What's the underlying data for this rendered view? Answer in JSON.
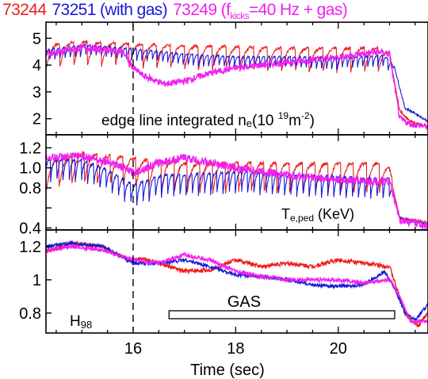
{
  "legend": {
    "shot1": "73244",
    "shot2": "73251 (with gas)",
    "shot3_pre": "73249 (f",
    "shot3_sub": "kicks",
    "shot3_post": "=40 Hz + gas)"
  },
  "colors": {
    "shot1": "#ee1c1c",
    "shot2": "#1a1ad6",
    "shot3": "#f020f0",
    "axis": "#000000"
  },
  "panels": {
    "p1": {
      "label_main": "edge line integrated n",
      "label_sub": "e",
      "label_unit": "(10 ",
      "label_exp1": "19",
      "label_m": "m",
      "label_exp2": "-2",
      "label_close": ")"
    },
    "p2": {
      "label_main": "T",
      "label_sub": "e,ped",
      "label_unit": " (KeV)"
    },
    "p3": {
      "label_main": "H",
      "label_sub": "98",
      "gas_label": "GAS"
    }
  },
  "xlabel": "Time (sec)",
  "chart_data": [
    {
      "type": "line",
      "panel": "top",
      "label": "edge line integrated ne(10 19m-2)",
      "xlim": [
        14.3,
        21.75
      ],
      "ylim": [
        1.4,
        5.6
      ],
      "yticks": [
        2,
        3,
        4,
        5
      ],
      "series": [
        {
          "name": "73244",
          "color": "#ee1c1c",
          "style": "elm-sawtooth",
          "period": 0.27,
          "drop": 0.9,
          "points": [
            [
              14.3,
              4.6
            ],
            [
              15.0,
              4.75
            ],
            [
              16.0,
              4.65
            ],
            [
              17.0,
              4.6
            ],
            [
              18.0,
              4.55
            ],
            [
              19.0,
              4.5
            ],
            [
              20.0,
              4.5
            ],
            [
              20.8,
              4.5
            ],
            [
              21.0,
              4.35
            ],
            [
              21.2,
              2.3
            ],
            [
              21.4,
              1.9
            ],
            [
              21.75,
              1.7
            ]
          ]
        },
        {
          "name": "73251 (with gas)",
          "color": "#1a1ad6",
          "style": "elm-dense",
          "period": 0.1,
          "drop": 0.45,
          "points": [
            [
              14.3,
              4.5
            ],
            [
              15.0,
              4.7
            ],
            [
              16.0,
              4.55
            ],
            [
              16.5,
              4.45
            ],
            [
              17.0,
              4.35
            ],
            [
              18.0,
              4.25
            ],
            [
              19.0,
              4.25
            ],
            [
              20.0,
              4.2
            ],
            [
              20.9,
              4.3
            ],
            [
              21.1,
              3.9
            ],
            [
              21.3,
              2.4
            ],
            [
              21.5,
              2.2
            ],
            [
              21.75,
              1.9
            ]
          ]
        },
        {
          "name": "73249 (fkicks=40 Hz + gas)",
          "color": "#f020f0",
          "style": "noisy",
          "amp": 0.12,
          "points": [
            [
              14.3,
              4.4
            ],
            [
              15.0,
              4.65
            ],
            [
              15.8,
              4.5
            ],
            [
              16.0,
              3.9
            ],
            [
              16.2,
              3.6
            ],
            [
              16.6,
              3.3
            ],
            [
              17.0,
              3.4
            ],
            [
              17.5,
              3.7
            ],
            [
              18.0,
              3.9
            ],
            [
              19.0,
              4.1
            ],
            [
              20.0,
              4.3
            ],
            [
              20.8,
              4.5
            ],
            [
              21.0,
              4.4
            ],
            [
              21.2,
              2.0
            ],
            [
              21.4,
              1.8
            ],
            [
              21.75,
              1.7
            ]
          ]
        }
      ]
    },
    {
      "type": "line",
      "panel": "middle",
      "label": "Te,ped (KeV)",
      "xlim": [
        14.3,
        21.75
      ],
      "ylim": [
        0.38,
        1.33
      ],
      "yticks": [
        0.4,
        0.6,
        0.8,
        1.0,
        1.2
      ],
      "ytick_labels": [
        "0.4",
        "",
        "0.8",
        "1.0",
        "1.2"
      ],
      "series": [
        {
          "name": "73244",
          "color": "#ee1c1c",
          "style": "elm-sawtooth",
          "period": 0.25,
          "drop": 0.3,
          "points": [
            [
              14.3,
              1.0
            ],
            [
              15.0,
              1.1
            ],
            [
              16.0,
              1.05
            ],
            [
              17.0,
              1.0
            ],
            [
              18.0,
              1.0
            ],
            [
              19.0,
              1.0
            ],
            [
              20.0,
              1.0
            ],
            [
              20.8,
              1.0
            ],
            [
              21.0,
              0.95
            ],
            [
              21.2,
              0.5
            ],
            [
              21.5,
              0.48
            ],
            [
              21.75,
              0.45
            ]
          ]
        },
        {
          "name": "73251 (with gas)",
          "color": "#1a1ad6",
          "style": "elm-dense",
          "period": 0.12,
          "drop": 0.22,
          "points": [
            [
              14.3,
              1.05
            ],
            [
              15.0,
              1.05
            ],
            [
              15.5,
              0.95
            ],
            [
              16.0,
              0.8
            ],
            [
              16.6,
              0.9
            ],
            [
              17.0,
              0.9
            ],
            [
              18.0,
              0.93
            ],
            [
              19.0,
              0.9
            ],
            [
              20.0,
              0.88
            ],
            [
              21.0,
              0.86
            ],
            [
              21.2,
              0.5
            ],
            [
              21.75,
              0.43
            ]
          ]
        },
        {
          "name": "73249 (fkicks=40 Hz + gas)",
          "color": "#f020f0",
          "style": "noisy",
          "amp": 0.04,
          "points": [
            [
              14.3,
              1.1
            ],
            [
              15.0,
              1.12
            ],
            [
              15.6,
              1.05
            ],
            [
              16.0,
              0.95
            ],
            [
              16.5,
              1.05
            ],
            [
              17.0,
              1.1
            ],
            [
              17.5,
              1.05
            ],
            [
              18.0,
              1.0
            ],
            [
              19.0,
              0.93
            ],
            [
              20.0,
              0.88
            ],
            [
              21.0,
              0.86
            ],
            [
              21.2,
              0.48
            ],
            [
              21.75,
              0.42
            ]
          ]
        }
      ]
    },
    {
      "type": "line",
      "panel": "bottom",
      "label": "H98",
      "xlim": [
        14.3,
        21.75
      ],
      "ylim": [
        0.68,
        1.3
      ],
      "yticks": [
        0.8,
        1.0,
        1.2
      ],
      "series": [
        {
          "name": "73244",
          "color": "#ee1c1c",
          "style": "noisy",
          "amp": 0.012,
          "points": [
            [
              14.3,
              1.17
            ],
            [
              14.8,
              1.22
            ],
            [
              15.4,
              1.2
            ],
            [
              15.9,
              1.12
            ],
            [
              16.2,
              1.13
            ],
            [
              17.0,
              1.05
            ],
            [
              17.5,
              1.06
            ],
            [
              18.0,
              1.12
            ],
            [
              18.5,
              1.08
            ],
            [
              19.0,
              1.1
            ],
            [
              19.5,
              1.08
            ],
            [
              20.0,
              1.12
            ],
            [
              20.5,
              1.1
            ],
            [
              21.0,
              1.08
            ],
            [
              21.3,
              0.8
            ],
            [
              21.55,
              0.72
            ],
            [
              21.75,
              0.8
            ]
          ]
        },
        {
          "name": "73251 (with gas)",
          "color": "#1a1ad6",
          "style": "noisy",
          "amp": 0.01,
          "points": [
            [
              14.3,
              1.2
            ],
            [
              14.8,
              1.22
            ],
            [
              15.4,
              1.2
            ],
            [
              16.0,
              1.1
            ],
            [
              16.5,
              1.1
            ],
            [
              17.0,
              1.12
            ],
            [
              17.5,
              1.08
            ],
            [
              18.0,
              1.03
            ],
            [
              18.5,
              1.02
            ],
            [
              19.0,
              1.0
            ],
            [
              19.5,
              0.97
            ],
            [
              20.0,
              0.96
            ],
            [
              20.5,
              0.97
            ],
            [
              20.9,
              1.05
            ],
            [
              21.1,
              0.95
            ],
            [
              21.3,
              0.8
            ],
            [
              21.5,
              0.76
            ],
            [
              21.75,
              0.85
            ]
          ]
        },
        {
          "name": "73249 (fkicks=40 Hz + gas)",
          "color": "#f020f0",
          "style": "noisy",
          "amp": 0.012,
          "points": [
            [
              14.3,
              1.18
            ],
            [
              14.8,
              1.2
            ],
            [
              15.4,
              1.18
            ],
            [
              16.0,
              1.12
            ],
            [
              16.5,
              1.1
            ],
            [
              17.0,
              1.15
            ],
            [
              17.5,
              1.12
            ],
            [
              18.0,
              1.05
            ],
            [
              18.5,
              1.02
            ],
            [
              19.0,
              1.0
            ],
            [
              19.5,
              1.0
            ],
            [
              20.0,
              1.0
            ],
            [
              20.5,
              0.98
            ],
            [
              21.0,
              1.0
            ],
            [
              21.2,
              0.9
            ],
            [
              21.4,
              0.75
            ],
            [
              21.75,
              0.75
            ]
          ]
        }
      ],
      "gas_interval": [
        16.7,
        21.1
      ],
      "gas_level": 0.79
    }
  ],
  "xaxis": {
    "ticks": [
      16,
      18,
      20
    ],
    "minor_step": 0.5,
    "marker_time": 16.0
  }
}
